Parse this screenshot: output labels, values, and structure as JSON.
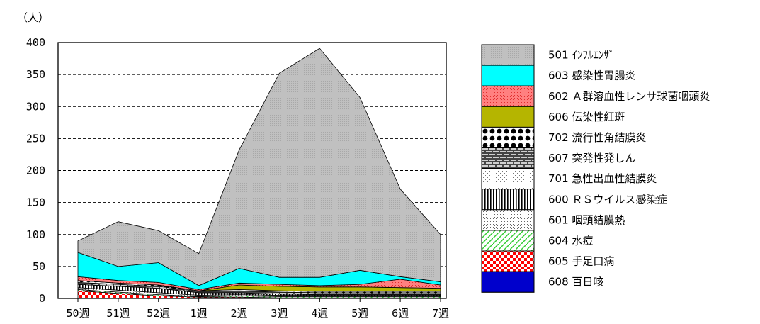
{
  "chart_data": {
    "type": "area",
    "stacked": true,
    "ylabel": "（人）",
    "ylim": [
      0,
      400
    ],
    "yticks": [
      0,
      50,
      100,
      150,
      200,
      250,
      300,
      350,
      400
    ],
    "grid": true,
    "legend_position": "right",
    "categories": [
      "50週",
      "51週",
      "52週",
      "1週",
      "2週",
      "3週",
      "4週",
      "5週",
      "6週",
      "7週"
    ],
    "series": [
      {
        "name": "608 百日咳",
        "color": "#0000cc",
        "values": [
          0,
          0,
          0,
          0,
          0,
          0,
          0,
          0,
          0,
          0
        ]
      },
      {
        "name": "605 手足口病",
        "color": "#ff0000",
        "values": [
          12,
          8,
          4,
          2,
          2,
          1,
          1,
          1,
          1,
          1
        ]
      },
      {
        "name": "604 水痘",
        "color": "#33cc33",
        "values": [
          2,
          2,
          2,
          1,
          2,
          2,
          2,
          2,
          2,
          2
        ]
      },
      {
        "name": "601 咽頭結膜熱",
        "color": "#c8c8c8",
        "values": [
          3,
          3,
          3,
          2,
          2,
          2,
          2,
          2,
          2,
          2
        ]
      },
      {
        "name": "600 ＲＳウイルス感染症",
        "color": "#000000",
        "values": [
          5,
          6,
          7,
          4,
          3,
          2,
          1,
          1,
          1,
          1
        ]
      },
      {
        "name": "701 急性出血性結膜炎",
        "color": "#cccccc",
        "values": [
          0,
          0,
          0,
          0,
          0,
          0,
          0,
          0,
          0,
          0
        ]
      },
      {
        "name": "607 突発性発しん",
        "color": "#555555",
        "values": [
          3,
          3,
          3,
          2,
          3,
          3,
          3,
          3,
          3,
          3
        ]
      },
      {
        "name": "702 流行性角結膜炎",
        "color": "#111111",
        "values": [
          3,
          2,
          2,
          1,
          2,
          2,
          2,
          2,
          2,
          2
        ]
      },
      {
        "name": "606 伝染性紅斑",
        "color": "#b5b500",
        "values": [
          0,
          0,
          0,
          0,
          7,
          7,
          7,
          7,
          6,
          5
        ]
      },
      {
        "name": "602 Ａ群溶血性レンサ球菌咽頭炎",
        "color": "#ff7777",
        "values": [
          6,
          4,
          4,
          2,
          3,
          3,
          2,
          4,
          13,
          5
        ]
      },
      {
        "name": "603 感染性胃腸炎",
        "color": "#00ffff",
        "values": [
          38,
          22,
          31,
          6,
          23,
          11,
          13,
          22,
          4,
          5
        ]
      },
      {
        "name": "501 ｲﾝﾌﾙｴﾝｻﾞ",
        "color": "#c0c0c0",
        "values": [
          18,
          70,
          50,
          50,
          185,
          319,
          358,
          270,
          137,
          74
        ]
      }
    ],
    "legend_order": [
      "501 ｲﾝﾌﾙｴﾝｻﾞ",
      "603 感染性胃腸炎",
      "602 Ａ群溶血性レンサ球菌咽頭炎",
      "606 伝染性紅斑",
      "702 流行性角結膜炎",
      "607 突発性発しん",
      "701 急性出血性結膜炎",
      "600 ＲＳウイルス感染症",
      "601 咽頭結膜熱",
      "604 水痘",
      "605 手足口病",
      "608 百日咳"
    ]
  }
}
